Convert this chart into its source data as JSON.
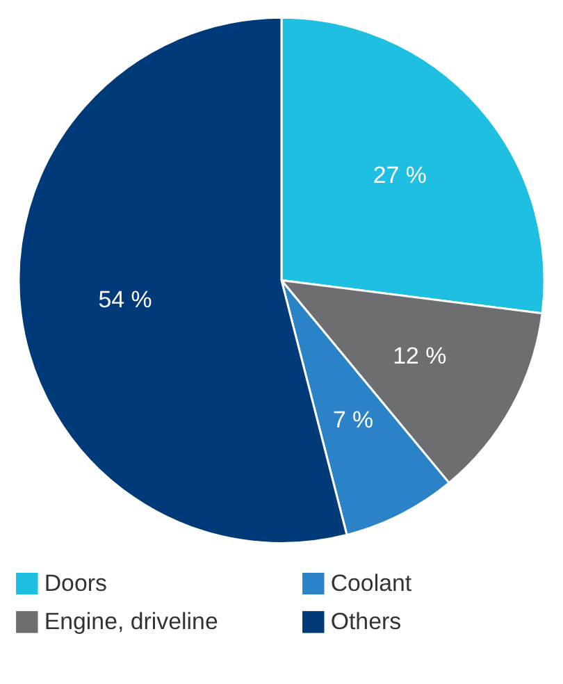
{
  "chart_data": {
    "type": "pie",
    "categories": [
      "Doors",
      "Engine, driveline",
      "Coolant",
      "Others"
    ],
    "values": [
      27,
      12,
      7,
      54
    ],
    "colors": [
      "#1ebfe0",
      "#6d6e71",
      "#2a83c6",
      "#003a78"
    ],
    "value_labels": [
      "27 %",
      "12 %",
      "7 %",
      "54 %"
    ],
    "legend": "bottom"
  }
}
